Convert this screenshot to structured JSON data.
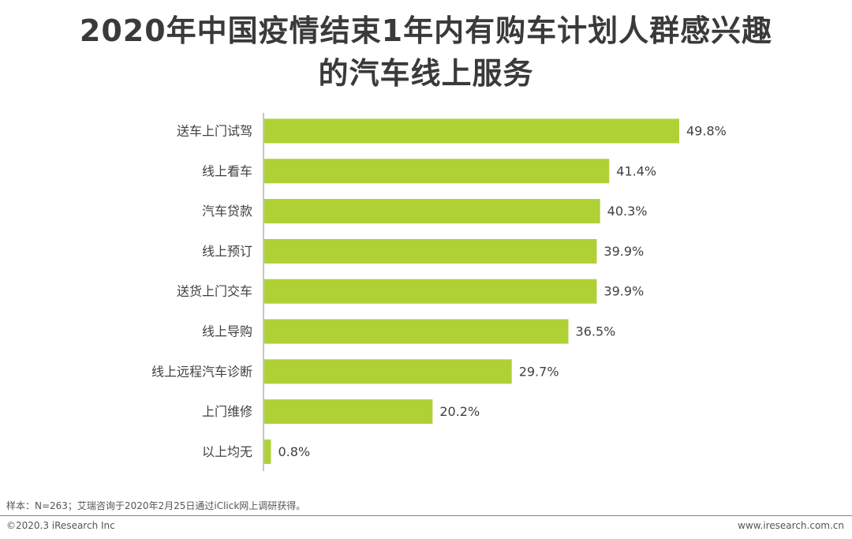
{
  "title_line1": "2020年中国疫情结束1年内有购车计划人群感兴趣",
  "title_line2": "的汽车线上服务",
  "chart_data": {
    "type": "bar",
    "orientation": "horizontal",
    "categories": [
      "送车上门试驾",
      "线上看车",
      "汽车贷款",
      "线上预订",
      "送货上门交车",
      "线上导购",
      "线上远程汽车诊断",
      "上门维修",
      "以上均无"
    ],
    "values": [
      49.8,
      41.4,
      40.3,
      39.9,
      39.9,
      36.5,
      29.7,
      20.2,
      0.8
    ],
    "value_labels": [
      "49.8%",
      "41.4%",
      "40.3%",
      "39.9%",
      "39.9%",
      "36.5%",
      "29.7%",
      "20.2%",
      "0.8%"
    ],
    "unit": "%",
    "bar_color": "#afd136",
    "axis_color": "#8c8c8c",
    "grid": false,
    "legend": "none"
  },
  "note": "样本：N=263；艾瑞咨询于2020年2月25日通过iClick网上调研获得。",
  "copyright": "©2020.3 iResearch Inc",
  "website": "www.iresearch.com.cn"
}
